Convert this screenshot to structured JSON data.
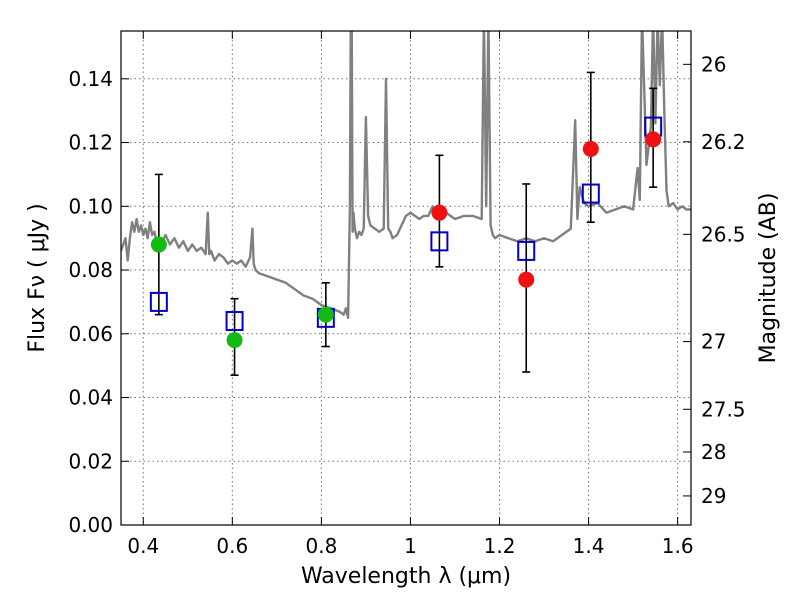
{
  "chart_data": {
    "type": "scatter",
    "xlabel": "Wavelength  λ (μm)",
    "ylabel": "Flux  Fν  ( μJy )",
    "ylabel_right": "Magnitude (AB)",
    "xlim": [
      0.35,
      1.63
    ],
    "ylim": [
      0.0,
      0.155
    ],
    "grid": true,
    "x_ticks": [
      {
        "value": 0.4,
        "label": "0.4"
      },
      {
        "value": 0.6,
        "label": "0.6"
      },
      {
        "value": 0.8,
        "label": "0.8"
      },
      {
        "value": 1.0,
        "label": "1"
      },
      {
        "value": 1.2,
        "label": "1.2"
      },
      {
        "value": 1.4,
        "label": "1.4"
      },
      {
        "value": 1.6,
        "label": "1.6"
      }
    ],
    "y_ticks": [
      {
        "value": 0.0,
        "label": "0.00"
      },
      {
        "value": 0.02,
        "label": "0.02"
      },
      {
        "value": 0.04,
        "label": "0.04"
      },
      {
        "value": 0.06,
        "label": "0.06"
      },
      {
        "value": 0.08,
        "label": "0.08"
      },
      {
        "value": 0.1,
        "label": "0.10"
      },
      {
        "value": 0.12,
        "label": "0.12"
      },
      {
        "value": 0.14,
        "label": "0.14"
      }
    ],
    "mag_ticks": [
      {
        "mag": 26.0,
        "label": "26"
      },
      {
        "mag": 26.2,
        "label": "26.2"
      },
      {
        "mag": 26.5,
        "label": "26.5"
      },
      {
        "mag": 27.0,
        "label": "27"
      },
      {
        "mag": 27.5,
        "label": "27.5"
      },
      {
        "mag": 28.0,
        "label": "28"
      },
      {
        "mag": 29.0,
        "label": "29"
      }
    ],
    "series": [
      {
        "kind": "model_spectrum",
        "color": "#808080",
        "x": [
          0.35,
          0.36,
          0.365,
          0.37,
          0.375,
          0.38,
          0.385,
          0.39,
          0.395,
          0.4,
          0.405,
          0.41,
          0.415,
          0.42,
          0.425,
          0.43,
          0.435,
          0.44,
          0.45,
          0.46,
          0.47,
          0.48,
          0.49,
          0.5,
          0.51,
          0.52,
          0.53,
          0.54,
          0.545,
          0.548,
          0.552,
          0.56,
          0.57,
          0.58,
          0.59,
          0.6,
          0.61,
          0.62,
          0.63,
          0.64,
          0.645,
          0.648,
          0.652,
          0.66,
          0.68,
          0.7,
          0.72,
          0.74,
          0.76,
          0.78,
          0.8,
          0.82,
          0.84,
          0.85,
          0.855,
          0.86,
          0.864,
          0.866,
          0.868,
          0.87,
          0.872,
          0.875,
          0.88,
          0.885,
          0.89,
          0.895,
          0.9,
          0.905,
          0.91,
          0.92,
          0.93,
          0.94,
          0.945,
          0.95,
          0.955,
          0.96,
          0.97,
          0.98,
          0.99,
          1.0,
          1.01,
          1.02,
          1.03,
          1.04,
          1.05,
          1.06,
          1.07,
          1.08,
          1.09,
          1.1,
          1.12,
          1.14,
          1.16,
          1.165,
          1.17,
          1.175,
          1.18,
          1.185,
          1.19,
          1.2,
          1.22,
          1.24,
          1.26,
          1.28,
          1.3,
          1.32,
          1.34,
          1.36,
          1.37,
          1.375,
          1.38,
          1.39,
          1.4,
          1.42,
          1.44,
          1.46,
          1.48,
          1.5,
          1.51,
          1.515,
          1.52,
          1.53,
          1.54,
          1.545,
          1.55,
          1.555,
          1.56,
          1.565,
          1.57,
          1.575,
          1.58,
          1.59,
          1.6,
          1.61,
          1.62,
          1.63
        ],
        "y": [
          0.086,
          0.09,
          0.083,
          0.09,
          0.095,
          0.092,
          0.096,
          0.092,
          0.094,
          0.091,
          0.093,
          0.09,
          0.095,
          0.091,
          0.092,
          0.089,
          0.09,
          0.088,
          0.091,
          0.088,
          0.09,
          0.087,
          0.089,
          0.086,
          0.088,
          0.086,
          0.087,
          0.085,
          0.098,
          0.085,
          0.086,
          0.083,
          0.085,
          0.084,
          0.082,
          0.083,
          0.082,
          0.083,
          0.081,
          0.084,
          0.093,
          0.082,
          0.08,
          0.079,
          0.078,
          0.077,
          0.076,
          0.074,
          0.072,
          0.071,
          0.069,
          0.068,
          0.067,
          0.066,
          0.068,
          0.065,
          0.1,
          0.16,
          0.16,
          0.092,
          0.098,
          0.093,
          0.09,
          0.092,
          0.091,
          0.093,
          0.128,
          0.097,
          0.094,
          0.093,
          0.092,
          0.093,
          0.14,
          0.093,
          0.092,
          0.09,
          0.091,
          0.094,
          0.097,
          0.098,
          0.097,
          0.096,
          0.097,
          0.097,
          0.1,
          0.096,
          0.096,
          0.098,
          0.097,
          0.096,
          0.097,
          0.097,
          0.096,
          0.16,
          0.1,
          0.16,
          0.094,
          0.091,
          0.09,
          0.091,
          0.09,
          0.089,
          0.09,
          0.089,
          0.09,
          0.089,
          0.091,
          0.093,
          0.127,
          0.096,
          0.106,
          0.101,
          0.1,
          0.101,
          0.098,
          0.099,
          0.1,
          0.099,
          0.112,
          0.102,
          0.16,
          0.113,
          0.125,
          0.16,
          0.126,
          0.16,
          0.138,
          0.16,
          0.13,
          0.105,
          0.1,
          0.101,
          0.099,
          0.1,
          0.099,
          0.099
        ]
      },
      {
        "kind": "model_bandpass",
        "marker": "open-square",
        "color": "#0000cc",
        "x": [
          0.435,
          0.605,
          0.81,
          1.065,
          1.26,
          1.405,
          1.545
        ],
        "y": [
          0.07,
          0.064,
          0.065,
          0.089,
          0.086,
          0.104,
          0.125
        ]
      },
      {
        "kind": "observed_detection",
        "marker": "filled-circle",
        "color": "#11bb11",
        "x": [
          0.435,
          0.605,
          0.81
        ],
        "y": [
          0.088,
          0.058,
          0.066
        ],
        "yerr_low": [
          0.066,
          0.047,
          0.056
        ],
        "yerr_high": [
          0.11,
          0.071,
          0.076
        ]
      },
      {
        "kind": "observed_detection",
        "marker": "filled-circle",
        "color": "#ee1111",
        "x": [
          1.065,
          1.26,
          1.405,
          1.545
        ],
        "y": [
          0.098,
          0.077,
          0.118,
          0.121
        ],
        "yerr_low": [
          0.081,
          0.048,
          0.095,
          0.106
        ],
        "yerr_high": [
          0.116,
          0.107,
          0.142,
          0.137
        ]
      }
    ]
  }
}
